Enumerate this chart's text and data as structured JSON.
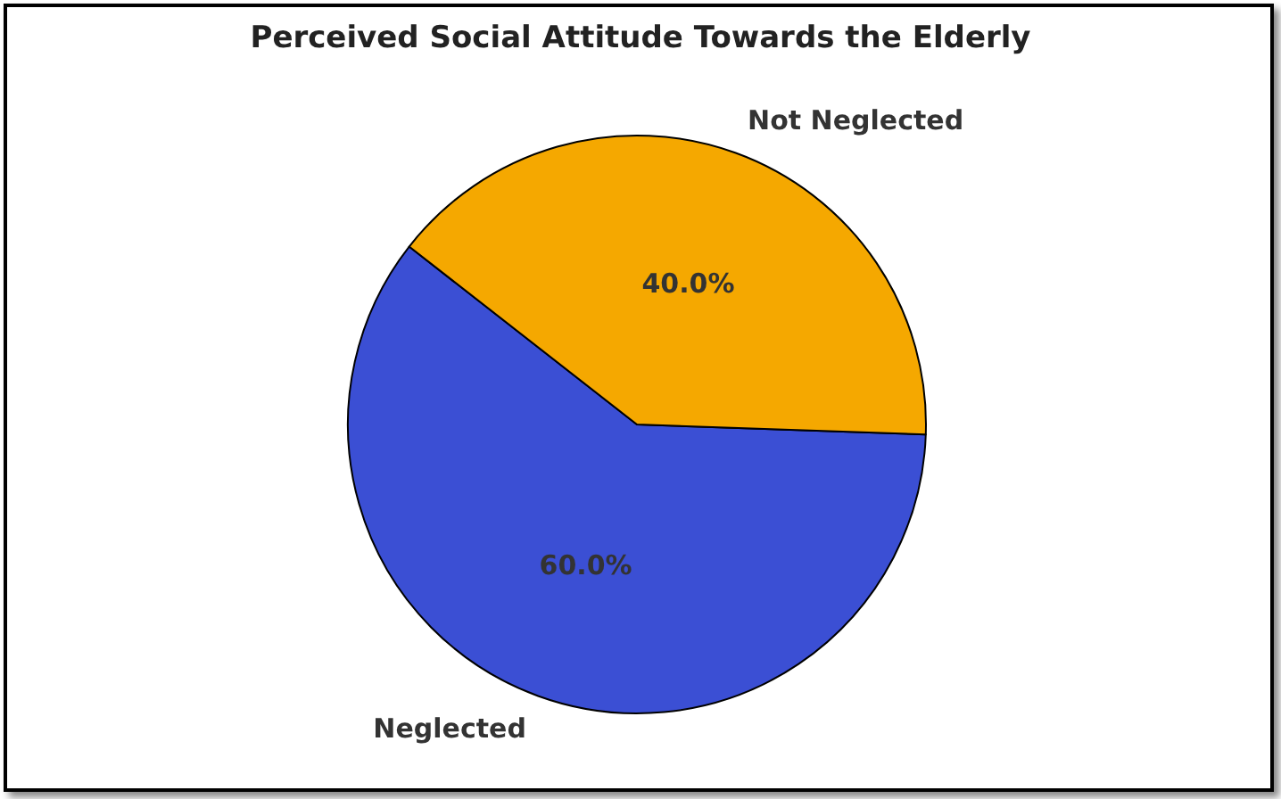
{
  "chart_data": {
    "type": "pie",
    "title": "Perceived Social Attitude Towards the Elderly",
    "categories": [
      "Neglected",
      "Not Neglected"
    ],
    "values": [
      60,
      40
    ],
    "colors": [
      "#3b4fd4",
      "#f5a800"
    ],
    "value_labels": [
      "60.0%",
      "40.0%"
    ],
    "legend": false
  }
}
